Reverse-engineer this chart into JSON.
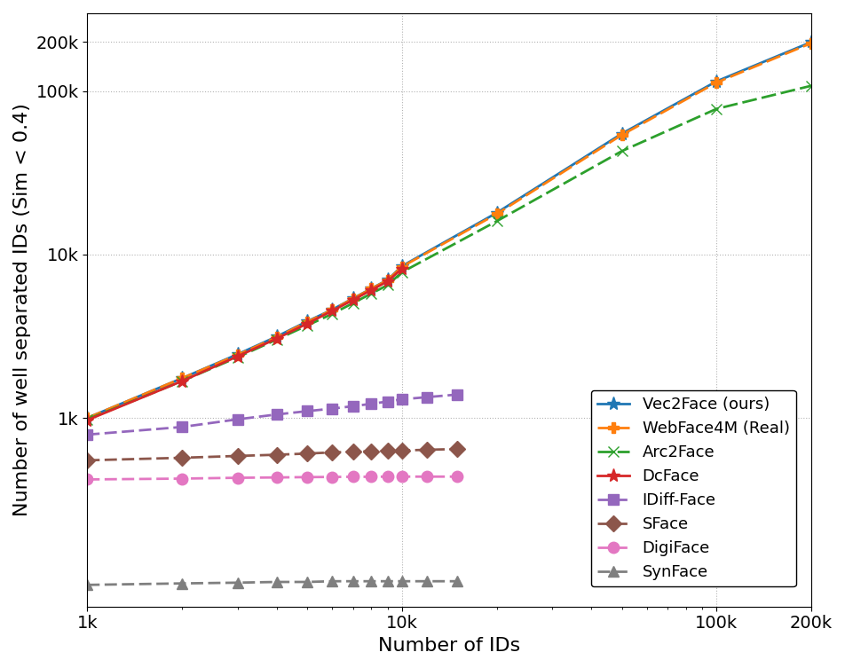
{
  "series": {
    "Vec2Face (ours)": {
      "x": [
        1000,
        2000,
        3000,
        4000,
        5000,
        6000,
        7000,
        8000,
        9000,
        10000,
        20000,
        50000,
        100000,
        200000
      ],
      "y": [
        1000,
        1750,
        2450,
        3150,
        3900,
        4600,
        5400,
        6200,
        7000,
        8500,
        18000,
        55000,
        115000,
        200000
      ],
      "color": "#1f77b4",
      "linestyle": "-",
      "marker": "*",
      "markersize": 11,
      "linewidth": 2.0,
      "dashes": []
    },
    "WebFace4M (Real)": {
      "x": [
        1000,
        2000,
        3000,
        4000,
        5000,
        6000,
        7000,
        8000,
        9000,
        10000,
        20000,
        50000,
        100000,
        200000
      ],
      "y": [
        1000,
        1750,
        2430,
        3120,
        3870,
        4580,
        5380,
        6180,
        6970,
        8420,
        17700,
        54000,
        113000,
        197000
      ],
      "color": "#ff7f0e",
      "linestyle": "--",
      "marker": "P",
      "markersize": 8,
      "linewidth": 2.0,
      "dashes": [
        6,
        2
      ]
    },
    "Arc2Face": {
      "x": [
        1000,
        2000,
        3000,
        4000,
        5000,
        6000,
        7000,
        8000,
        9000,
        10000,
        20000,
        50000,
        100000,
        200000
      ],
      "y": [
        980,
        1680,
        2350,
        3020,
        3680,
        4330,
        5050,
        5780,
        6500,
        7800,
        16000,
        43000,
        78000,
        108000
      ],
      "color": "#2ca02c",
      "linestyle": "--",
      "marker": "x",
      "markersize": 9,
      "linewidth": 2.0,
      "dashes": [
        6,
        2
      ]
    },
    "DcFace": {
      "x": [
        1000,
        2000,
        3000,
        4000,
        5000,
        6000,
        7000,
        8000,
        9000,
        10000
      ],
      "y": [
        970,
        1680,
        2380,
        3060,
        3780,
        4520,
        5280,
        6070,
        6850,
        8200
      ],
      "color": "#d62728",
      "linestyle": "-",
      "marker": "*",
      "markersize": 11,
      "linewidth": 2.0,
      "dashes": []
    },
    "IDiff-Face": {
      "x": [
        1000,
        2000,
        3000,
        4000,
        5000,
        6000,
        7000,
        8000,
        9000,
        10000,
        12000,
        15000
      ],
      "y": [
        790,
        880,
        980,
        1050,
        1100,
        1140,
        1180,
        1220,
        1260,
        1300,
        1340,
        1390
      ],
      "color": "#9467bd",
      "linestyle": "--",
      "marker": "s",
      "markersize": 9,
      "linewidth": 2.0,
      "dashes": [
        5,
        2
      ]
    },
    "SFace": {
      "x": [
        1000,
        2000,
        3000,
        4000,
        5000,
        6000,
        7000,
        8000,
        9000,
        10000,
        12000,
        15000
      ],
      "y": [
        550,
        570,
        585,
        595,
        605,
        615,
        620,
        625,
        628,
        632,
        638,
        645
      ],
      "color": "#8c564b",
      "linestyle": "--",
      "marker": "D",
      "markersize": 9,
      "linewidth": 2.0,
      "dashes": [
        5,
        2
      ]
    },
    "DigiFace": {
      "x": [
        1000,
        2000,
        3000,
        4000,
        5000,
        6000,
        7000,
        8000,
        9000,
        10000,
        12000,
        15000
      ],
      "y": [
        420,
        425,
        430,
        432,
        434,
        435,
        436,
        436,
        437,
        437,
        437,
        437
      ],
      "color": "#e377c2",
      "linestyle": "--",
      "marker": "o",
      "markersize": 9,
      "linewidth": 2.0,
      "dashes": [
        5,
        2
      ]
    },
    "SynFace": {
      "x": [
        1000,
        2000,
        3000,
        4000,
        5000,
        6000,
        7000,
        8000,
        9000,
        10000,
        12000,
        15000
      ],
      "y": [
        95,
        97,
        98,
        99,
        99,
        100,
        100,
        100,
        100,
        100,
        100,
        100
      ],
      "color": "#7f7f7f",
      "linestyle": "--",
      "marker": "^",
      "markersize": 8,
      "linewidth": 2.0,
      "dashes": [
        5,
        2
      ]
    }
  },
  "xlabel": "Number of IDs",
  "ylabel": "Number of well separated IDs (Sim < 0.4)",
  "xlim_log": [
    1000,
    200000
  ],
  "ylim_log": [
    70,
    300000
  ],
  "xticks": [
    1000,
    10000,
    100000,
    200000
  ],
  "xtick_labels": [
    "1k",
    "10k",
    "100k",
    "200k"
  ],
  "yticks": [
    1000,
    10000,
    100000,
    200000
  ],
  "ytick_labels": [
    "1k",
    "10k",
    "100k",
    "200k"
  ],
  "extra_ytick": 200000,
  "grid": true,
  "legend_loc": "center right",
  "fontsize": 14
}
